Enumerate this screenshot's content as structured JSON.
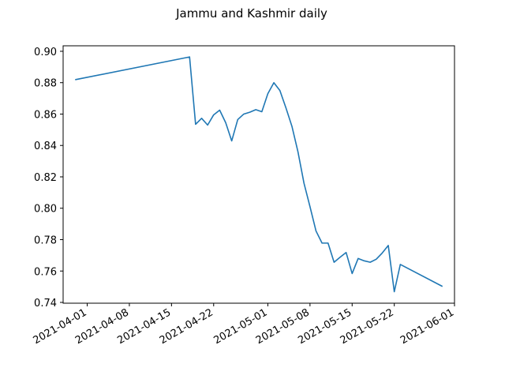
{
  "chart_data": {
    "type": "line",
    "title": "Jammu and Kashmir daily",
    "xlabel": "",
    "ylabel": "",
    "grid": false,
    "line_color": "#1f77b4",
    "x_tick_labels": [
      "2021-04-01",
      "2021-04-08",
      "2021-04-15",
      "2021-04-22",
      "2021-05-01",
      "2021-05-08",
      "2021-05-15",
      "2021-05-22",
      "2021-06-01"
    ],
    "y_tick_labels": [
      "0.74",
      "0.76",
      "0.78",
      "0.80",
      "0.82",
      "0.84",
      "0.86",
      "0.88",
      "0.90"
    ],
    "ylim": [
      0.7395,
      0.9035
    ],
    "xlim": [
      "2021-03-28",
      "2021-06-01"
    ],
    "series": [
      {
        "x": [
          "2021-03-30",
          "2021-04-18",
          "2021-04-19",
          "2021-04-20",
          "2021-04-21",
          "2021-04-22",
          "2021-04-23",
          "2021-04-24",
          "2021-04-25",
          "2021-04-26",
          "2021-04-27",
          "2021-04-28",
          "2021-04-29",
          "2021-04-30",
          "2021-05-01",
          "2021-05-02",
          "2021-05-03",
          "2021-05-04",
          "2021-05-05",
          "2021-05-06",
          "2021-05-07",
          "2021-05-08",
          "2021-05-09",
          "2021-05-10",
          "2021-05-11",
          "2021-05-12",
          "2021-05-13",
          "2021-05-14",
          "2021-05-15",
          "2021-05-16",
          "2021-05-17",
          "2021-05-18",
          "2021-05-19",
          "2021-05-20",
          "2021-05-21",
          "2021-05-22",
          "2021-05-23",
          "2021-05-30"
        ],
        "values": [
          0.8819,
          0.8964,
          0.8535,
          0.8573,
          0.853,
          0.8595,
          0.8625,
          0.8545,
          0.8429,
          0.8565,
          0.86,
          0.8612,
          0.8628,
          0.8615,
          0.873,
          0.88,
          0.875,
          0.864,
          0.8522,
          0.836,
          0.816,
          0.801,
          0.7855,
          0.7778,
          0.7778,
          0.7656,
          0.7688,
          0.7718,
          0.7584,
          0.768,
          0.7665,
          0.7656,
          0.7675,
          0.7715,
          0.7763,
          0.7468,
          0.7642,
          0.7502
        ]
      }
    ]
  }
}
